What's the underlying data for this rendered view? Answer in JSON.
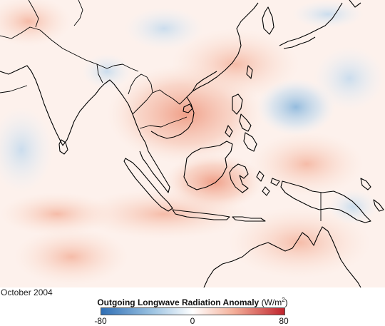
{
  "map": {
    "date": "October 2004",
    "legend": {
      "title": "Outgoing Longwave Radiation Anomaly",
      "unit_prefix": "(W/m",
      "unit_sup": "2",
      "unit_suffix": ")",
      "min_label": "-80",
      "mid_label": "0",
      "max_label": "80",
      "colors": {
        "negative": "#2f6fb5",
        "neutral": "#ffffff",
        "positive": "#c0242d"
      }
    }
  }
}
